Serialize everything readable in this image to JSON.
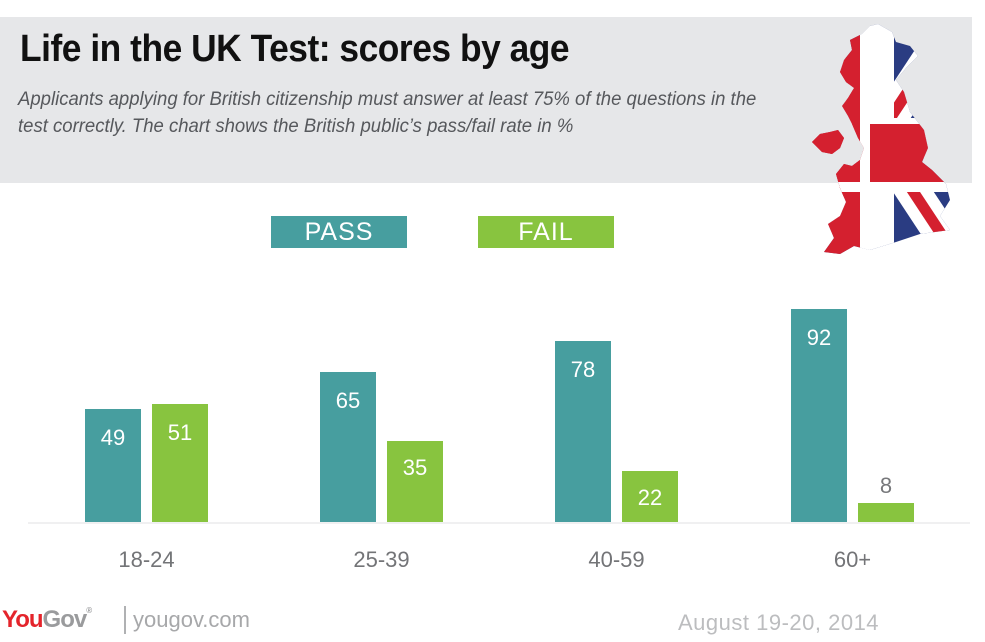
{
  "header": {
    "title": "Life in the UK Test: scores by age",
    "subtitle": "Applicants applying for British citizenship must answer at least 75% of the questions in the test correctly. The chart shows the British public’s pass/fail rate in %"
  },
  "legend": [
    {
      "label": "PASS",
      "color": "#479e9f"
    },
    {
      "label": "FAIL",
      "color": "#88c43f"
    }
  ],
  "icons": {
    "map": "uk-union-jack-map-icon"
  },
  "footer": {
    "logo_you": "You",
    "logo_gov": "Gov",
    "logo_mark": "®",
    "url": "yougov.com",
    "date": "August 19-20, 2014"
  },
  "colors": {
    "pass": "#479e9f",
    "fail": "#88c43f",
    "header_bg": "#e6e7e9",
    "brand_red": "#e4242b"
  },
  "chart_data": {
    "type": "bar",
    "title": "Life in the UK Test: scores by age",
    "subtitle": "Applicants applying for British citizenship must answer at least 75% of the questions in the test correctly. The chart shows the British public’s pass/fail rate in %",
    "categories": [
      "18-24",
      "25-39",
      "40-59",
      "60+"
    ],
    "series": [
      {
        "name": "PASS",
        "values": [
          49,
          65,
          78,
          92
        ],
        "color": "#479e9f"
      },
      {
        "name": "FAIL",
        "values": [
          51,
          35,
          22,
          8
        ],
        "color": "#88c43f"
      }
    ],
    "xlabel": "",
    "ylabel": "%",
    "ylim": [
      0,
      100
    ],
    "grid": false,
    "legend_position": "top",
    "data_labels": true
  }
}
